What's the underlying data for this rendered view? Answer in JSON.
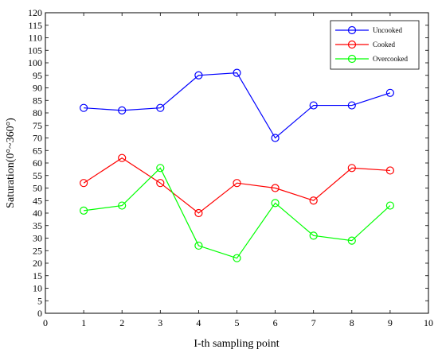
{
  "chart_data": {
    "type": "line",
    "xlabel": "I-th sampling point",
    "ylabel": "Saturation(0°~360°)",
    "xlim": [
      0,
      10
    ],
    "ylim": [
      0,
      120
    ],
    "xticks": [
      0,
      1,
      2,
      3,
      4,
      5,
      6,
      7,
      8,
      9,
      10
    ],
    "yticks": [
      0,
      5,
      10,
      15,
      20,
      25,
      30,
      35,
      40,
      45,
      50,
      55,
      60,
      65,
      70,
      75,
      80,
      85,
      90,
      95,
      100,
      105,
      110,
      115,
      120
    ],
    "grid": false,
    "legend_position": "top-right",
    "marker": "circle",
    "x": [
      1,
      2,
      3,
      4,
      5,
      6,
      7,
      8,
      9
    ],
    "series": [
      {
        "name": "Uncooked",
        "color": "#0000ff",
        "values": [
          82,
          81,
          82,
          95,
          96,
          70,
          83,
          83,
          88
        ]
      },
      {
        "name": "Cooked",
        "color": "#ff0000",
        "values": [
          52,
          62,
          52,
          40,
          52,
          50,
          45,
          58,
          57
        ]
      },
      {
        "name": "Overcooked",
        "color": "#00ff00",
        "values": [
          41,
          43,
          58,
          27,
          22,
          44,
          31,
          29,
          43
        ]
      }
    ]
  }
}
